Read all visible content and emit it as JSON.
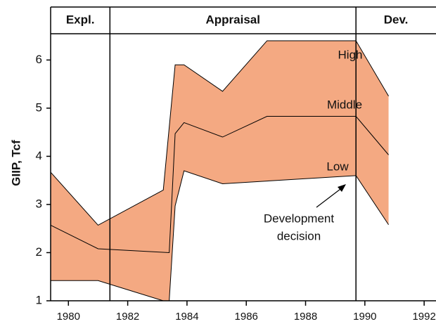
{
  "chart_data": {
    "type": "band-line",
    "ylabel": "GIIP, Tcf",
    "xlim": [
      1979.4,
      1992.4
    ],
    "ylim": [
      1,
      7.1
    ],
    "xticks": [
      1980,
      1982,
      1984,
      1986,
      1988,
      1990,
      1992
    ],
    "yticks": [
      1,
      2,
      3,
      4,
      5,
      6
    ],
    "fill_color": "#f4a982",
    "phases": [
      "Expl.",
      "Appraisal",
      "Dev."
    ],
    "phase_boundaries": [
      1981.4,
      1989.7
    ],
    "series": [
      {
        "name": "High",
        "x": [
          1979.4,
          1981.0,
          1983.2,
          1983.6,
          1983.9,
          1985.2,
          1986.7,
          1989.7,
          1990.8
        ],
        "values": [
          3.67,
          2.57,
          3.3,
          5.9,
          5.9,
          5.35,
          6.4,
          6.4,
          5.25
        ]
      },
      {
        "name": "Middle",
        "x": [
          1979.4,
          1981.0,
          1983.4,
          1983.6,
          1983.9,
          1985.2,
          1986.7,
          1989.7,
          1990.8
        ],
        "values": [
          2.57,
          2.08,
          2.0,
          4.47,
          4.7,
          4.4,
          4.83,
          4.83,
          4.03
        ]
      },
      {
        "name": "Low",
        "x": [
          1979.4,
          1981.0,
          1983.2,
          1983.4,
          1983.6,
          1983.9,
          1985.2,
          1989.7,
          1990.8
        ],
        "values": [
          1.42,
          1.42,
          1.0,
          1.0,
          2.97,
          3.7,
          3.43,
          3.6,
          2.58
        ]
      }
    ],
    "annotation": [
      "Development",
      "decision"
    ]
  }
}
